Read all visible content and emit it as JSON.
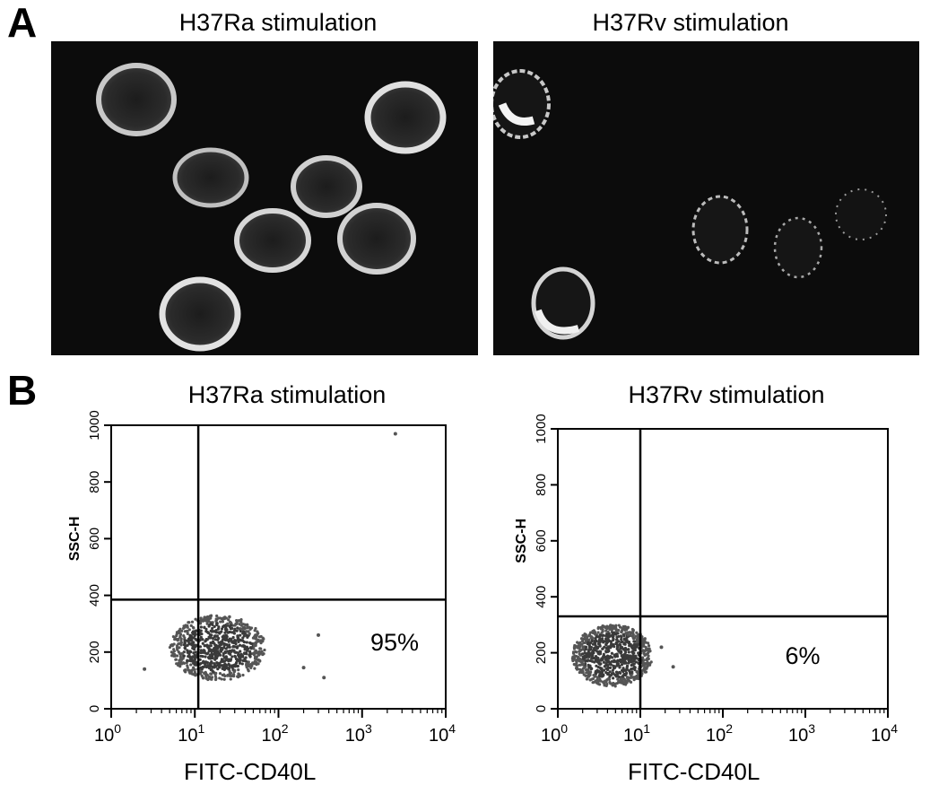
{
  "panel_a": {
    "letter": "A",
    "images": [
      {
        "title": "H37Ra stimulation",
        "description_name": "microscopy-image-h37ra"
      },
      {
        "title": "H37Rv stimulation",
        "description_name": "microscopy-image-h37rv"
      }
    ]
  },
  "panel_b": {
    "letter": "B"
  },
  "chart_data": [
    {
      "type": "scatter",
      "title": "H37Ra stimulation",
      "xlabel": "FITC-CD40L",
      "ylabel": "SSC-H",
      "xscale": "log",
      "xlim": [
        1,
        10000
      ],
      "ylim": [
        0,
        1000
      ],
      "x_ticks": [
        1,
        10,
        100,
        1000,
        10000
      ],
      "x_tick_labels": [
        {
          "base": "10",
          "exp": "0"
        },
        {
          "base": "10",
          "exp": "1"
        },
        {
          "base": "10",
          "exp": "2"
        },
        {
          "base": "10",
          "exp": "3"
        },
        {
          "base": "10",
          "exp": "4"
        }
      ],
      "y_ticks": [
        0,
        200,
        400,
        600,
        800,
        1000
      ],
      "y_tick_labels": [
        "0",
        "200",
        "400",
        "600",
        "800",
        "1000"
      ],
      "quadrant": {
        "x": 11,
        "y": 385
      },
      "cluster": {
        "x_min": 5,
        "x_max": 70,
        "y_min": 100,
        "y_max": 330
      },
      "outliers": [
        {
          "x": 2500,
          "y": 970
        },
        {
          "x": 300,
          "y": 260
        },
        {
          "x": 350,
          "y": 110
        },
        {
          "x": 200,
          "y": 145
        },
        {
          "x": 2.5,
          "y": 140
        }
      ],
      "annotation": "95%",
      "annotation_position": "lower-right quadrant"
    },
    {
      "type": "scatter",
      "title": "H37Rv stimulation",
      "xlabel": "FITC-CD40L",
      "ylabel": "SSC-H",
      "xscale": "log",
      "xlim": [
        1,
        10000
      ],
      "ylim": [
        0,
        1000
      ],
      "x_ticks": [
        1,
        10,
        100,
        1000,
        10000
      ],
      "x_tick_labels": [
        {
          "base": "10",
          "exp": "0"
        },
        {
          "base": "10",
          "exp": "1"
        },
        {
          "base": "10",
          "exp": "2"
        },
        {
          "base": "10",
          "exp": "3"
        },
        {
          "base": "10",
          "exp": "4"
        }
      ],
      "y_ticks": [
        0,
        200,
        400,
        600,
        800,
        1000
      ],
      "y_tick_labels": [
        "0",
        "200",
        "400",
        "600",
        "800",
        "1000"
      ],
      "quadrant": {
        "x": 10,
        "y": 330
      },
      "cluster": {
        "x_min": 1.5,
        "x_max": 14,
        "y_min": 80,
        "y_max": 300
      },
      "outliers": [
        {
          "x": 18,
          "y": 220
        },
        {
          "x": 25,
          "y": 150
        }
      ],
      "annotation": "6%",
      "annotation_position": "lower-right quadrant"
    }
  ],
  "colors": {
    "background": "#ffffff",
    "image_background": "#0c0c0c",
    "cell_membrane": "#d8d8d8",
    "dot": "#333333"
  }
}
